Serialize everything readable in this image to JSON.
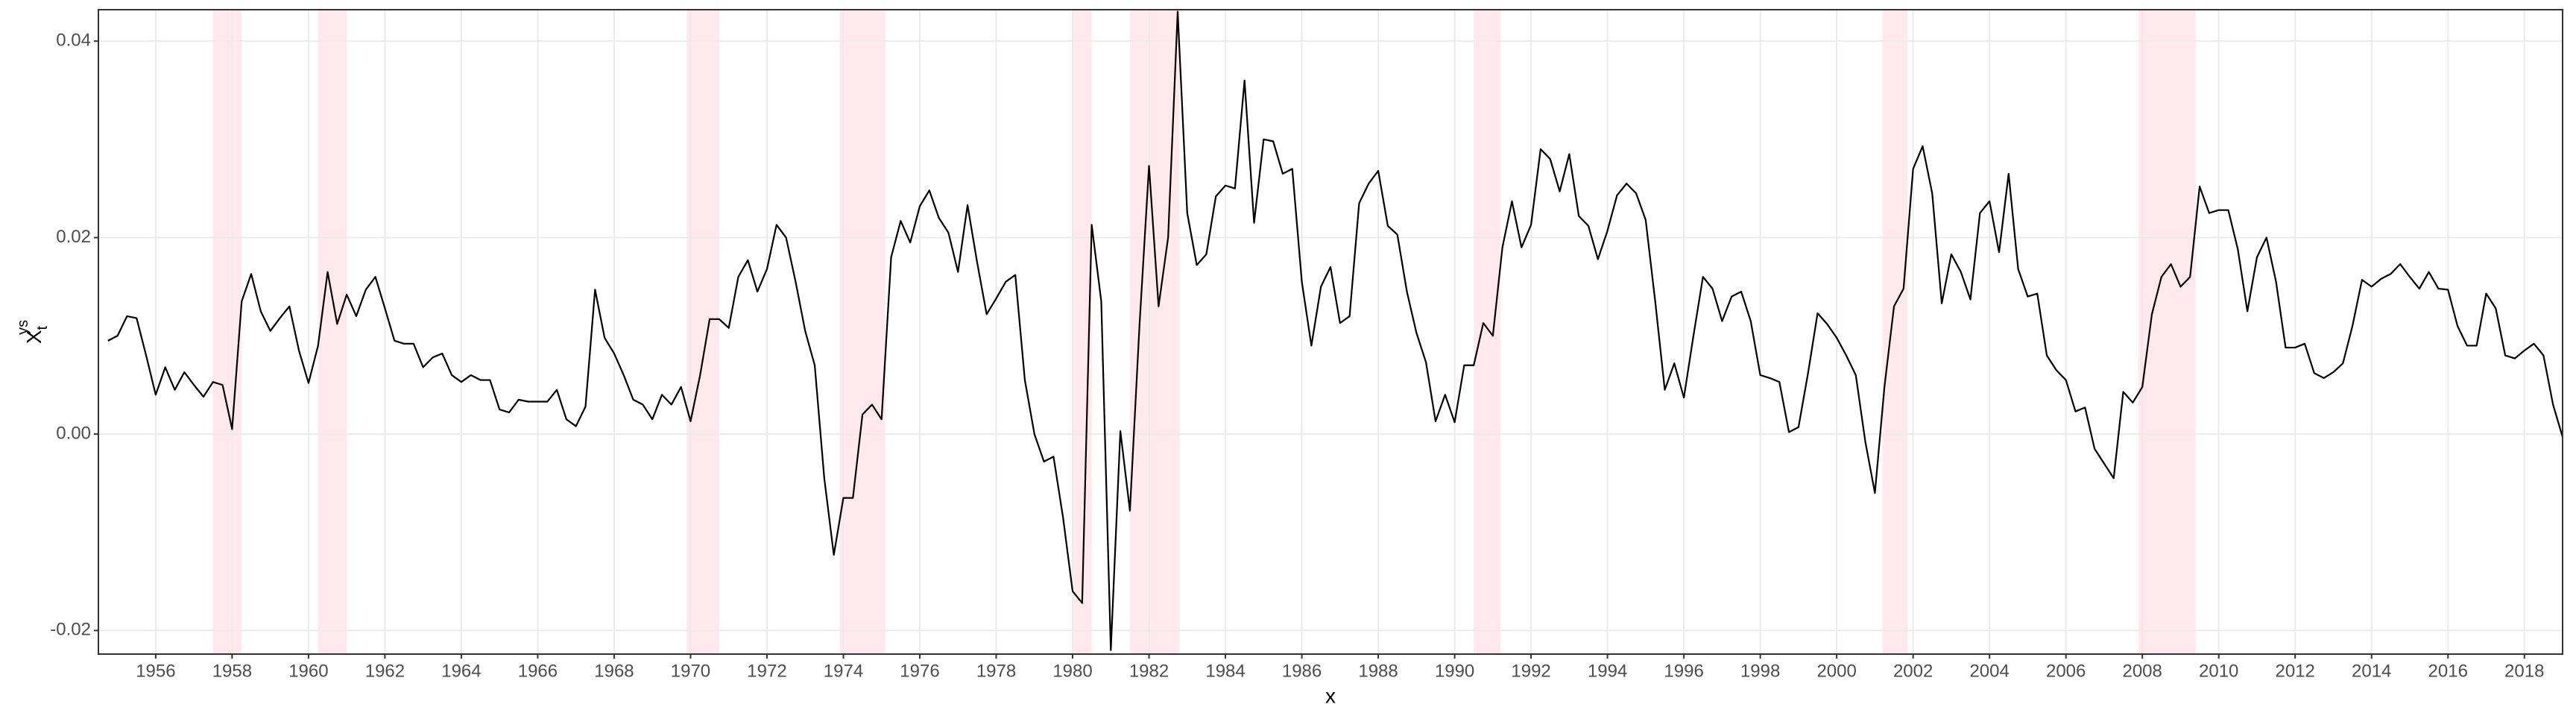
{
  "chart_data": {
    "type": "line",
    "xlabel": "x",
    "ylabel": {
      "text": "X",
      "sub": "t",
      "sup": "ys"
    },
    "xlim": [
      1954.5,
      2019
    ],
    "ylim": [
      -0.0224,
      0.0432
    ],
    "xticks": [
      1956,
      1958,
      1960,
      1962,
      1964,
      1966,
      1968,
      1970,
      1972,
      1974,
      1976,
      1978,
      1980,
      1982,
      1984,
      1986,
      1988,
      1990,
      1992,
      1994,
      1996,
      1998,
      2000,
      2002,
      2004,
      2006,
      2008,
      2010,
      2012,
      2014,
      2016,
      2018
    ],
    "yticks": [
      -0.02,
      {
        "value": 0,
        "label": "0.00"
      },
      0.02,
      0.04
    ],
    "grid": true,
    "shade_color": "#ffe8ee",
    "shaded_periods": [
      [
        1957.5,
        1958.25
      ],
      [
        1960.25,
        1961.0
      ],
      [
        1969.9,
        1970.75
      ],
      [
        1973.9,
        1975.1
      ],
      [
        1980.0,
        1980.5
      ],
      [
        1981.5,
        1982.8
      ],
      [
        1990.5,
        1991.2
      ],
      [
        2001.2,
        2001.85
      ],
      [
        2007.9,
        2009.4
      ]
    ],
    "x": [
      1954.75,
      1955,
      1955.25,
      1955.5,
      1955.75,
      1956,
      1956.25,
      1956.5,
      1956.75,
      1957,
      1957.25,
      1957.5,
      1957.75,
      1958,
      1958.25,
      1958.5,
      1958.75,
      1959,
      1959.25,
      1959.5,
      1959.75,
      1960,
      1960.25,
      1960.5,
      1960.75,
      1961,
      1961.25,
      1961.5,
      1961.75,
      1962,
      1962.25,
      1962.5,
      1962.75,
      1963,
      1963.25,
      1963.5,
      1963.75,
      1964,
      1964.25,
      1964.5,
      1964.75,
      1965,
      1965.25,
      1965.5,
      1965.75,
      1966,
      1966.25,
      1966.5,
      1966.75,
      1967,
      1967.25,
      1967.5,
      1967.75,
      1968,
      1968.25,
      1968.5,
      1968.75,
      1969,
      1969.25,
      1969.5,
      1969.75,
      1970,
      1970.25,
      1970.5,
      1970.75,
      1971,
      1971.25,
      1971.5,
      1971.75,
      1972,
      1972.25,
      1972.5,
      1972.75,
      1973,
      1973.25,
      1973.5,
      1973.75,
      1974,
      1974.25,
      1974.5,
      1974.75,
      1975,
      1975.25,
      1975.5,
      1975.75,
      1976,
      1976.25,
      1976.5,
      1976.75,
      1977,
      1977.25,
      1977.5,
      1977.75,
      1978,
      1978.25,
      1978.5,
      1978.75,
      1979,
      1979.25,
      1979.5,
      1979.75,
      1980,
      1980.25,
      1980.5,
      1980.75,
      1981,
      1981.25,
      1981.5,
      1981.75,
      1982,
      1982.25,
      1982.5,
      1982.75,
      1983,
      1983.25,
      1983.5,
      1983.75,
      1984,
      1984.25,
      1984.5,
      1984.75,
      1985,
      1985.25,
      1985.5,
      1985.75,
      1986,
      1986.25,
      1986.5,
      1986.75,
      1987,
      1987.25,
      1987.5,
      1987.75,
      1988,
      1988.25,
      1988.5,
      1988.75,
      1989,
      1989.25,
      1989.5,
      1989.75,
      1990,
      1990.25,
      1990.5,
      1990.75,
      1991,
      1991.25,
      1991.5,
      1991.75,
      1992,
      1992.25,
      1992.5,
      1992.75,
      1993,
      1993.25,
      1993.5,
      1993.75,
      1994,
      1994.25,
      1994.5,
      1994.75,
      1995,
      1995.25,
      1995.5,
      1995.75,
      1996,
      1996.25,
      1996.5,
      1996.75,
      1997,
      1997.25,
      1997.5,
      1997.75,
      1998,
      1998.25,
      1998.5,
      1998.75,
      1999,
      1999.25,
      1999.5,
      1999.75,
      2000,
      2000.25,
      2000.5,
      2000.75,
      2001,
      2001.25,
      2001.5,
      2001.75,
      2002,
      2002.25,
      2002.5,
      2002.75,
      2003,
      2003.25,
      2003.5,
      2003.75,
      2004,
      2004.25,
      2004.5,
      2004.75,
      2005,
      2005.25,
      2005.5,
      2005.75,
      2006,
      2006.25,
      2006.5,
      2006.75,
      2007,
      2007.25,
      2007.5,
      2007.75,
      2008,
      2008.25,
      2008.5,
      2008.75,
      2009,
      2009.25,
      2009.5,
      2009.75,
      2010,
      2010.25,
      2010.5,
      2010.75,
      2011,
      2011.25,
      2011.5,
      2011.75,
      2012,
      2012.25,
      2012.5,
      2012.75,
      2013,
      2013.25,
      2013.5,
      2013.75,
      2014,
      2014.25,
      2014.5,
      2014.75,
      2015,
      2015.25,
      2015.5,
      2015.75,
      2016,
      2016.25,
      2016.5,
      2016.75,
      2017,
      2017.25,
      2017.5,
      2017.75,
      2018,
      2018.25,
      2018.5,
      2018.75,
      2019
    ],
    "series": [
      {
        "color": "#000000",
        "values": [
          0.0095,
          0.01,
          0.012,
          0.0118,
          0.008,
          0.004,
          0.0068,
          0.0045,
          0.0063,
          0.005,
          0.0038,
          0.0053,
          0.005,
          0.0005,
          0.0135,
          0.0163,
          0.0125,
          0.0105,
          0.0118,
          0.013,
          0.0085,
          0.0052,
          0.009,
          0.0165,
          0.0112,
          0.0142,
          0.012,
          0.0147,
          0.016,
          0.0128,
          0.0095,
          0.0092,
          0.0092,
          0.0068,
          0.0078,
          0.0082,
          0.006,
          0.0053,
          0.006,
          0.0055,
          0.0055,
          0.0025,
          0.0022,
          0.0035,
          0.0033,
          0.0033,
          0.0033,
          0.0045,
          0.0015,
          0.0008,
          0.0028,
          0.0147,
          0.0098,
          0.0082,
          0.006,
          0.0035,
          0.003,
          0.0015,
          0.004,
          0.003,
          0.0048,
          0.0013,
          0.006,
          0.0117,
          0.0117,
          0.0108,
          0.016,
          0.0177,
          0.0145,
          0.0168,
          0.0213,
          0.02,
          0.0155,
          0.0105,
          0.007,
          -0.0045,
          -0.0123,
          -0.0065,
          -0.0065,
          0.002,
          0.003,
          0.0015,
          0.018,
          0.0217,
          0.0195,
          0.0232,
          0.0248,
          0.022,
          0.0205,
          0.0165,
          0.0233,
          0.0175,
          0.0122,
          0.0138,
          0.0155,
          0.0162,
          0.0055,
          0.0,
          -0.0028,
          -0.0023,
          -0.0085,
          -0.016,
          -0.0172,
          0.0213,
          0.0135,
          -0.022,
          0.0003,
          -0.0078,
          0.011,
          0.0273,
          0.013,
          0.02,
          0.043,
          0.0225,
          0.0172,
          0.0183,
          0.0242,
          0.0253,
          0.025,
          0.036,
          0.0215,
          0.03,
          0.0298,
          0.0265,
          0.027,
          0.0155,
          0.009,
          0.015,
          0.017,
          0.0113,
          0.012,
          0.0235,
          0.0255,
          0.0268,
          0.0212,
          0.0203,
          0.0145,
          0.0103,
          0.0073,
          0.0013,
          0.004,
          0.0012,
          0.007,
          0.007,
          0.0113,
          0.01,
          0.019,
          0.0237,
          0.019,
          0.0213,
          0.029,
          0.028,
          0.0247,
          0.0285,
          0.0222,
          0.0212,
          0.0178,
          0.0207,
          0.0243,
          0.0255,
          0.0245,
          0.0218,
          0.0135,
          0.0045,
          0.0072,
          0.0037,
          0.01,
          0.016,
          0.0148,
          0.0115,
          0.014,
          0.0145,
          0.0115,
          0.006,
          0.0057,
          0.0053,
          0.0002,
          0.0007,
          0.0062,
          0.0123,
          0.0112,
          0.0098,
          0.008,
          0.006,
          -0.0008,
          -0.006,
          0.0048,
          0.013,
          0.0148,
          0.027,
          0.0293,
          0.0245,
          0.0133,
          0.0183,
          0.0165,
          0.0137,
          0.0225,
          0.0237,
          0.0185,
          0.0265,
          0.0168,
          0.014,
          0.0143,
          0.008,
          0.0065,
          0.0055,
          0.0023,
          0.0027,
          -0.0015,
          -0.003,
          -0.0045,
          0.0043,
          0.0032,
          0.0048,
          0.0122,
          0.016,
          0.0173,
          0.015,
          0.016,
          0.0252,
          0.0225,
          0.0228,
          0.0228,
          0.0188,
          0.0125,
          0.018,
          0.02,
          0.0155,
          0.0088,
          0.0088,
          0.0092,
          0.0062,
          0.0057,
          0.0063,
          0.0072,
          0.011,
          0.0157,
          0.015,
          0.0158,
          0.0163,
          0.0173,
          0.016,
          0.0148,
          0.0165,
          0.0148,
          0.0147,
          0.011,
          0.009,
          0.009,
          0.0143,
          0.0128,
          0.008,
          0.0077,
          0.0085,
          0.0092,
          0.008,
          0.003,
          -0.0003
        ]
      }
    ]
  }
}
